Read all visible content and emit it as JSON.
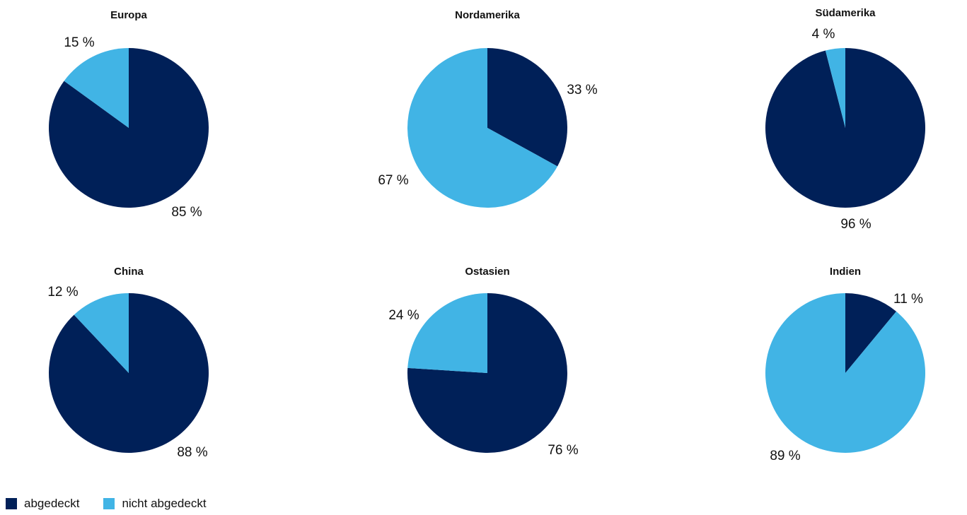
{
  "colors": {
    "abgedeckt": "#002058",
    "nicht_abgedeckt": "#41b4e5"
  },
  "legend": {
    "abgedeckt": "abgedeckt",
    "nicht_abgedeckt": "nicht abgedeckt"
  },
  "chart_data": [
    {
      "type": "pie",
      "title": "Europa",
      "slices": [
        {
          "series": "abgedeckt",
          "value": 85,
          "label": "85 %"
        },
        {
          "series": "nicht abgedeckt",
          "value": 15,
          "label": "15 %"
        }
      ]
    },
    {
      "type": "pie",
      "title": "Nordamerika",
      "slices": [
        {
          "series": "abgedeckt",
          "value": 33,
          "label": "33 %"
        },
        {
          "series": "nicht abgedeckt",
          "value": 67,
          "label": "67 %"
        }
      ]
    },
    {
      "type": "pie",
      "title": "Südamerika",
      "slices": [
        {
          "series": "abgedeckt",
          "value": 96,
          "label": "96 %"
        },
        {
          "series": "nicht abgedeckt",
          "value": 4,
          "label": "4 %"
        }
      ]
    },
    {
      "type": "pie",
      "title": "China",
      "slices": [
        {
          "series": "abgedeckt",
          "value": 88,
          "label": "88 %"
        },
        {
          "series": "nicht abgedeckt",
          "value": 12,
          "label": "12 %"
        }
      ]
    },
    {
      "type": "pie",
      "title": "Ostasien",
      "slices": [
        {
          "series": "abgedeckt",
          "value": 76,
          "label": "76 %"
        },
        {
          "series": "nicht abgedeckt",
          "value": 24,
          "label": "24 %"
        }
      ]
    },
    {
      "type": "pie",
      "title": "Indien",
      "slices": [
        {
          "series": "abgedeckt",
          "value": 11,
          "label": "11 %"
        },
        {
          "series": "nicht abgedeckt",
          "value": 89,
          "label": "89 %"
        }
      ]
    }
  ]
}
